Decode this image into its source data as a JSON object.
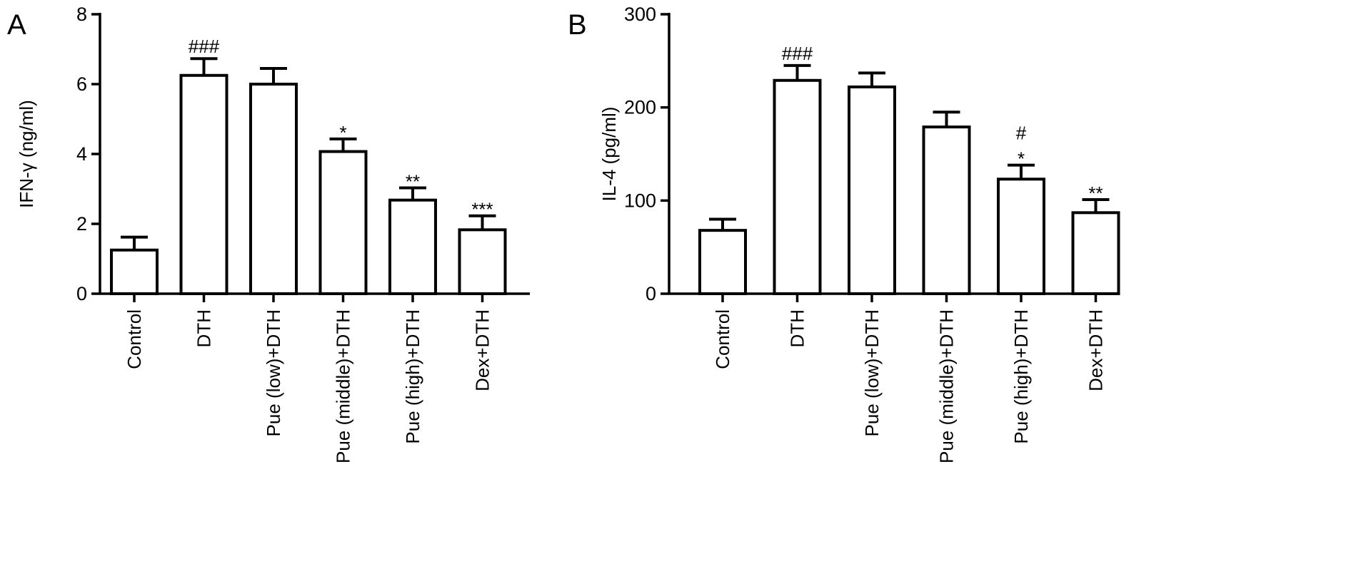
{
  "chart_data": [
    {
      "type": "bar",
      "panel_label": "A",
      "ylabel": "IFN-γ (ng/ml)",
      "ylim": [
        0,
        8
      ],
      "yticks": [
        0,
        2,
        4,
        6,
        8
      ],
      "categories": [
        "Control",
        "DTH",
        "Pue (low)+DTH",
        "Pue (middle)+DTH",
        "Pue (high)+DTH",
        "Dex+DTH"
      ],
      "values": [
        1.25,
        6.25,
        6.0,
        4.07,
        2.68,
        1.83
      ],
      "errors": [
        0.37,
        0.48,
        0.45,
        0.36,
        0.35,
        0.4
      ],
      "annotations": [
        "",
        "###",
        "",
        "*",
        "**",
        "***"
      ],
      "legend": "none",
      "grid": false
    },
    {
      "type": "bar",
      "panel_label": "B",
      "ylabel": "IL-4 (pg/ml)",
      "ylim": [
        0,
        300
      ],
      "yticks": [
        0,
        100,
        200,
        300
      ],
      "categories": [
        "Control",
        "DTH",
        "Pue (low)+DTH",
        "Pue (middle)+DTH",
        "Pue (high)+DTH",
        "Dex+DTH"
      ],
      "values": [
        68,
        229,
        222,
        179,
        123,
        87
      ],
      "errors": [
        12,
        16,
        15,
        16,
        15,
        14
      ],
      "annotations": [
        "",
        "###",
        "",
        "",
        "#\n*",
        "**"
      ],
      "legend": "none",
      "grid": false
    }
  ]
}
